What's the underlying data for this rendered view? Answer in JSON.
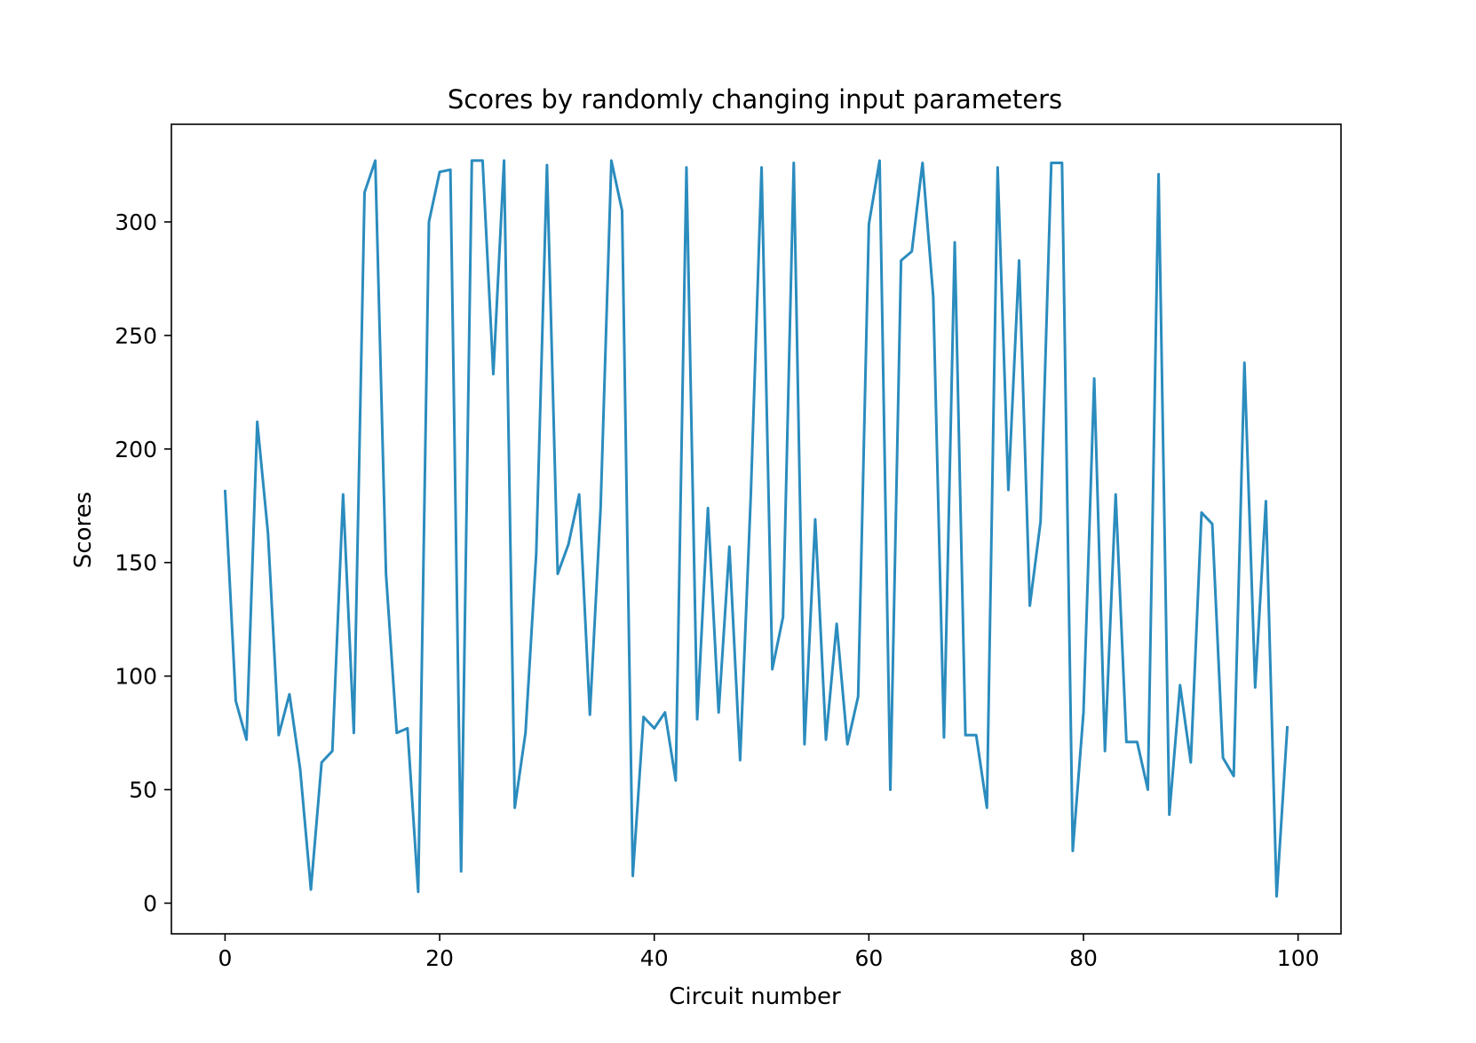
{
  "chart_data": {
    "type": "line",
    "title": "Scores by randomly changing input parameters",
    "xlabel": "Circuit number",
    "ylabel": "Scores",
    "xlim": [
      -5,
      104
    ],
    "ylim": [
      -13.5,
      343
    ],
    "xticks": [
      0,
      20,
      40,
      60,
      80,
      100
    ],
    "yticks": [
      0,
      50,
      100,
      150,
      200,
      250,
      300
    ],
    "grid": false,
    "legend": "none",
    "line_color": "#2b8cbe",
    "series": [
      {
        "x": [
          0,
          1,
          2,
          3,
          4,
          5,
          6,
          7,
          8,
          9,
          10,
          11,
          12,
          13,
          14,
          15,
          16,
          17,
          18,
          19,
          20,
          21,
          22,
          23,
          24,
          25,
          26,
          27,
          28,
          29,
          30,
          31,
          32,
          33,
          34,
          35,
          36,
          37,
          38,
          39,
          40,
          41,
          42,
          43,
          44,
          45,
          46,
          47,
          48,
          49,
          50,
          51,
          52,
          53,
          54,
          55,
          56,
          57,
          58,
          59,
          60,
          61,
          62,
          63,
          64,
          65,
          66,
          67,
          68,
          69,
          70,
          71,
          72,
          73,
          74,
          75,
          76,
          77,
          78,
          79,
          80,
          81,
          82,
          83,
          84,
          85,
          86,
          87,
          88,
          89,
          90,
          91,
          92,
          93,
          94,
          95,
          96,
          97,
          98,
          99
        ],
        "values": [
          182,
          89,
          72,
          212,
          163,
          74,
          92,
          59,
          6,
          62,
          67,
          180,
          75,
          313,
          327,
          145,
          75,
          77,
          5,
          300,
          322,
          323,
          14,
          327,
          327,
          233,
          327,
          42,
          75,
          154,
          325,
          145,
          158,
          180,
          83,
          174,
          327,
          305,
          12,
          82,
          77,
          84,
          54,
          324,
          81,
          174,
          84,
          157,
          63,
          180,
          324,
          103,
          126,
          326,
          70,
          169,
          72,
          123,
          70,
          91,
          299,
          327,
          50,
          283,
          287,
          326,
          267,
          73,
          291,
          74,
          74,
          42,
          324,
          182,
          283,
          131,
          168,
          326,
          326,
          23,
          84,
          231,
          67,
          180,
          71,
          71,
          50,
          321,
          39,
          96,
          62,
          172,
          167,
          64,
          56,
          238,
          95,
          177,
          3,
          78
        ]
      }
    ]
  }
}
